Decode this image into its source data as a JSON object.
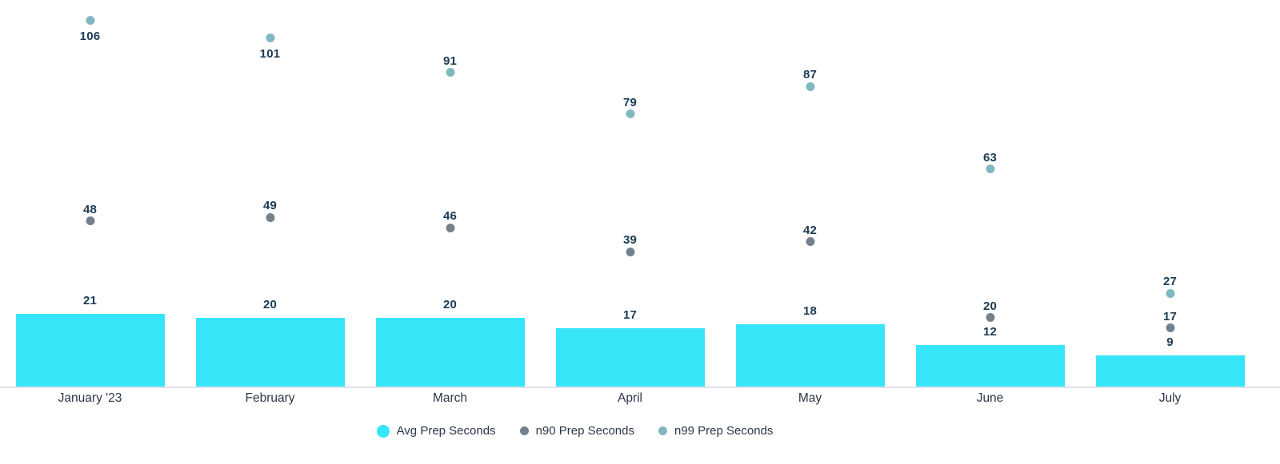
{
  "chart_data": {
    "type": "bar",
    "subtype": "bar-with-scatter-overlay",
    "categories": [
      "January '23",
      "February",
      "March",
      "April",
      "May",
      "June",
      "July"
    ],
    "series": [
      {
        "name": "Avg Prep Seconds",
        "type": "bar",
        "color": "#37e5f8",
        "values": [
          21,
          20,
          20,
          17,
          18,
          12,
          9
        ]
      },
      {
        "name": "n90 Prep Seconds",
        "type": "scatter",
        "color": "#74818d",
        "values": [
          48,
          49,
          46,
          39,
          42,
          20,
          17
        ]
      },
      {
        "name": "n99 Prep Seconds",
        "type": "scatter",
        "color": "#7fb8c1",
        "values": [
          106,
          101,
          91,
          79,
          87,
          63,
          27
        ],
        "labels_below_point": [
          true,
          true,
          false,
          false,
          false,
          false,
          false
        ]
      }
    ],
    "title": "",
    "xlabel": "",
    "ylabel": "",
    "ylim": [
      0,
      112
    ],
    "grid": false,
    "y_axis_shown": false,
    "value_labels_shown": true,
    "legend_position": "bottom-center",
    "colors": {
      "data_label": "#1b3b54",
      "axis_label": "#2b3647",
      "legend_label": "#2b3647",
      "axis_line": "#e1e1ea",
      "background": "#ffffff"
    }
  }
}
